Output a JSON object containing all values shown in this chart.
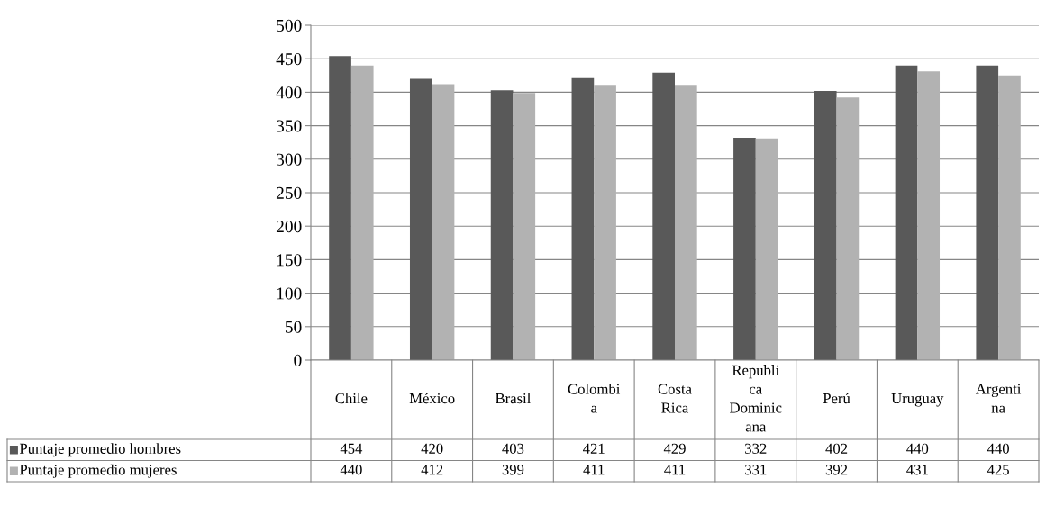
{
  "chart_data": {
    "type": "bar",
    "categories": [
      "Chile",
      "México",
      "Brasil",
      "Colombia",
      "Costa Rica",
      "Republica Dominicana",
      "Perú",
      "Uruguay",
      "Argentina"
    ],
    "series": [
      {
        "name": "Puntaje promedio hombres",
        "color": "#595959",
        "values": [
          454,
          420,
          403,
          421,
          429,
          332,
          402,
          440,
          440
        ]
      },
      {
        "name": "Puntaje promedio mujeres",
        "color": "#b2b2b2",
        "values": [
          440,
          412,
          399,
          411,
          411,
          331,
          392,
          431,
          425
        ]
      }
    ],
    "ylim": [
      0,
      500
    ],
    "yticks": [
      0,
      50,
      100,
      150,
      200,
      250,
      300,
      350,
      400,
      450,
      500
    ],
    "grid": "y",
    "data_labels": true,
    "legend": "bottom"
  }
}
